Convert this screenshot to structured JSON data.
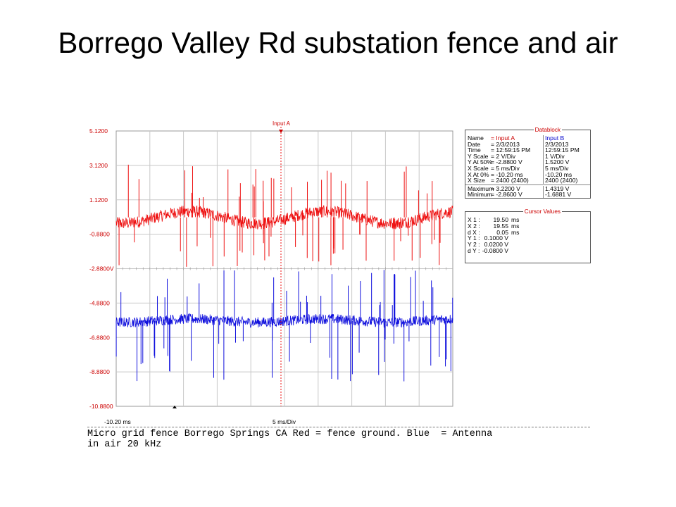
{
  "slide": {
    "title": "Borrego Valley Rd substation fence and air",
    "caption": "Micro grid fence Borrego Springs CA Red = fence ground. Blue  = Antenna\nin air 20 kHz"
  },
  "colors": {
    "channel_a": "#ee1111",
    "channel_b": "#1111dd",
    "grid": "#c8c8c8",
    "tick_text": "#cc0000"
  },
  "scope": {
    "marker_label": "Input A",
    "x_start_label": "-10.20 ms",
    "x_scale_label": "5 ms/Div"
  },
  "datablock": {
    "title": "Datablock",
    "rows": [
      {
        "label": "Name",
        "a": "= Input A",
        "b": "Input B",
        "header": true
      },
      {
        "label": "Date",
        "a": "= 2/3/2013",
        "b": "2/3/2013"
      },
      {
        "label": "Time",
        "a": "= 12:59:15 PM",
        "b": "12:59:15 PM"
      },
      {
        "label": "Y Scale",
        "a": "=   2      V/Div",
        "b": "1      V/Div"
      },
      {
        "label": "Y At 50%",
        "a": "= -2.8800 V",
        "b": "1.5200 V"
      },
      {
        "label": "X Scale",
        "a": "=   5      ms/Div",
        "b": "5      ms/Div"
      },
      {
        "label": "X At 0%",
        "a": "= -10.20   ms",
        "b": "-10.20   ms"
      },
      {
        "label": "X Size",
        "a": "= 2400 (2400)",
        "b": "2400 (2400)"
      },
      {
        "label": "Maximum",
        "a": "=   3.2200 V",
        "b": "1.4319 V",
        "sep": true
      },
      {
        "label": "Minimum",
        "a": "=  -2.8600 V",
        "b": "-1.6881 V"
      }
    ]
  },
  "cursor_values": {
    "title": "Cursor Values",
    "rows": [
      {
        "label": "X 1 :",
        "value": "19.50",
        "unit": "ms"
      },
      {
        "label": "X 2 :",
        "value": "19.55",
        "unit": "ms"
      },
      {
        "label": "d X :",
        "value": "0.05",
        "unit": "ms"
      },
      {
        "label": "Y 1 :",
        "value": "0.1000 V",
        "unit": ""
      },
      {
        "label": "Y 2 :",
        "value": "0.0200 V",
        "unit": ""
      },
      {
        "label": "d Y :",
        "value": "-0.0800 V",
        "unit": ""
      }
    ]
  },
  "chart_data": {
    "type": "line",
    "title": "",
    "xlabel": "",
    "ylabel": "",
    "x_range_ms": [
      -10.2,
      39.8
    ],
    "x_divisions": 10,
    "y_ticks": [
      "5.1200",
      "3.1200",
      "1.1200",
      "-0.8800",
      "-2.8800V",
      "-4.8800",
      "-6.8800",
      "-8.8800",
      "-10.8800"
    ],
    "ylim": [
      -10.88,
      5.12
    ],
    "grid": true,
    "series": [
      {
        "name": "Input A",
        "color": "#ee1111",
        "center_value": 0.1,
        "noise_amplitude": 0.35,
        "wave_amplitude": 0.35,
        "wave_period_ms": 20,
        "spike_range": [
          -2.86,
          3.22
        ]
      },
      {
        "name": "Input B",
        "color": "#1111dd",
        "center_value": -5.9,
        "noise_amplitude": 0.3,
        "wave_amplitude": 0.1,
        "wave_period_ms": 20,
        "spike_range": [
          -9.45,
          -2.9
        ]
      }
    ]
  }
}
